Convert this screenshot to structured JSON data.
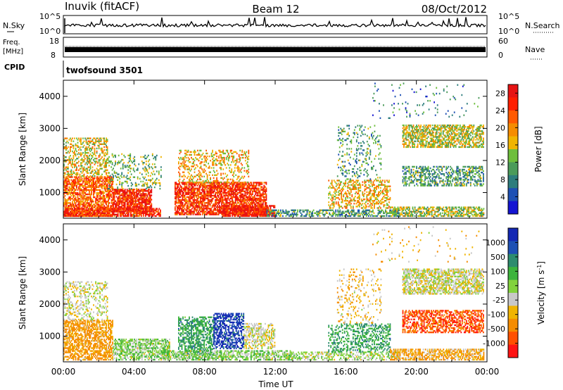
{
  "header": {
    "station": "Inuvik (fitACF)",
    "beam": "Beam 12",
    "date": "08/Oct/2012"
  },
  "strip_panels": {
    "nsky": {
      "left_label": "N.Sky",
      "right_label": "N.Search",
      "left_ticks": [
        "10^5",
        "10^0"
      ],
      "right_ticks": [
        "10^5",
        "10^0"
      ]
    },
    "freq": {
      "left_label_line1": "Freq.",
      "left_label_line2": "[MHz]",
      "right_label": "Nave",
      "left_ticks": [
        "18",
        "8"
      ],
      "right_ticks": [
        "60",
        "0"
      ]
    },
    "cpid": {
      "label": "CPID",
      "value": "twofsound 3501"
    }
  },
  "colors": {
    "power_scale": [
      "#1414d2",
      "#1e50b4",
      "#2d7d7d",
      "#4b9b5a",
      "#6ebe3c",
      "#f0b400",
      "#f58c00",
      "#ff5a00",
      "#ff1e00",
      "#e61414"
    ],
    "velocity_scale": [
      "#1428b4",
      "#1e50b4",
      "#2d8c6e",
      "#3cb43c",
      "#82d23c",
      "#c8c8c8",
      "#f0b400",
      "#f58c00",
      "#ff5000",
      "#ff1414"
    ]
  },
  "chart_data": [
    {
      "type": "heatmap",
      "name": "power",
      "ylabel": "Slant Range [km]",
      "xlabel": "",
      "x_ticks": [
        "00:00",
        "04:00",
        "08:00",
        "12:00",
        "16:00",
        "20:00",
        "00:00"
      ],
      "y_ticks": [
        "1000",
        "2000",
        "3000",
        "4000"
      ],
      "ylim": [
        200,
        4500
      ],
      "xlim_hours": [
        0,
        24
      ],
      "colorbar": {
        "label": "Power [dB]",
        "ticks": [
          "4",
          "8",
          "12",
          "16",
          "20",
          "24",
          "28"
        ],
        "range": [
          0,
          30
        ]
      },
      "regions": [
        {
          "t0": 0.0,
          "t1": 2.8,
          "r0": 250,
          "r1": 1500,
          "v": 22,
          "d": 0.7
        },
        {
          "t0": 0.0,
          "t1": 2.5,
          "r0": 1500,
          "r1": 2700,
          "v": 16,
          "d": 0.4
        },
        {
          "t0": 2.8,
          "t1": 5.0,
          "r0": 400,
          "r1": 1100,
          "v": 26,
          "d": 0.8
        },
        {
          "t0": 2.5,
          "t1": 5.5,
          "r0": 1100,
          "r1": 2200,
          "v": 12,
          "d": 0.2
        },
        {
          "t0": 0.0,
          "t1": 5.5,
          "r0": 250,
          "r1": 500,
          "v": 26,
          "d": 0.7
        },
        {
          "t0": 6.3,
          "t1": 11.5,
          "r0": 300,
          "r1": 1300,
          "v": 25,
          "d": 0.75
        },
        {
          "t0": 6.5,
          "t1": 10.5,
          "r0": 1300,
          "r1": 2300,
          "v": 18,
          "d": 0.3
        },
        {
          "t0": 9.0,
          "t1": 12.0,
          "r0": 250,
          "r1": 600,
          "v": 27,
          "d": 0.8
        },
        {
          "t0": 11.5,
          "t1": 19.0,
          "r0": 250,
          "r1": 450,
          "v": 10,
          "d": 0.5
        },
        {
          "t0": 15.0,
          "t1": 18.5,
          "r0": 500,
          "r1": 1400,
          "v": 18,
          "d": 0.4
        },
        {
          "t0": 15.5,
          "t1": 18.0,
          "r0": 1400,
          "r1": 3100,
          "v": 10,
          "d": 0.15
        },
        {
          "t0": 19.2,
          "t1": 23.8,
          "r0": 2400,
          "r1": 3100,
          "v": 15,
          "d": 0.6
        },
        {
          "t0": 19.2,
          "t1": 23.8,
          "r0": 1200,
          "r1": 1800,
          "v": 10,
          "d": 0.45
        },
        {
          "t0": 18.5,
          "t1": 23.8,
          "r0": 250,
          "r1": 550,
          "v": 14,
          "d": 0.6
        },
        {
          "t0": 17.5,
          "t1": 23.5,
          "r0": 3300,
          "r1": 4400,
          "v": 8,
          "d": 0.03
        }
      ]
    },
    {
      "type": "heatmap",
      "name": "velocity",
      "ylabel": "Slant Range [km]",
      "xlabel": "Time UT",
      "x_ticks": [
        "00:00",
        "04:00",
        "08:00",
        "12:00",
        "16:00",
        "20:00",
        "00:00"
      ],
      "y_ticks": [
        "1000",
        "2000",
        "3000",
        "4000"
      ],
      "ylim": [
        200,
        4500
      ],
      "xlim_hours": [
        0,
        24
      ],
      "colorbar": {
        "label": "Velocity [m s^-1]",
        "ticks": [
          "1000",
          "500",
          "100",
          "25",
          "-25",
          "-100",
          "-500",
          "-1000"
        ]
      },
      "regions": [
        {
          "t0": 0.0,
          "t1": 2.8,
          "r0": 250,
          "r1": 1500,
          "v": -150,
          "d": 0.6
        },
        {
          "t0": 0.0,
          "t1": 2.5,
          "r0": 1500,
          "r1": 2700,
          "v": 0,
          "d": 0.3
        },
        {
          "t0": 2.8,
          "t1": 6.0,
          "r0": 250,
          "r1": 900,
          "v": 60,
          "d": 0.6
        },
        {
          "t0": 6.5,
          "t1": 8.5,
          "r0": 400,
          "r1": 1600,
          "v": 300,
          "d": 0.55
        },
        {
          "t0": 8.5,
          "t1": 10.2,
          "r0": 600,
          "r1": 1700,
          "v": 900,
          "d": 0.55
        },
        {
          "t0": 10.2,
          "t1": 12.0,
          "r0": 600,
          "r1": 1400,
          "v": 0,
          "d": 0.5
        },
        {
          "t0": 5.5,
          "t1": 13.0,
          "r0": 250,
          "r1": 550,
          "v": 60,
          "d": 0.6
        },
        {
          "t0": 12.5,
          "t1": 19.0,
          "r0": 250,
          "r1": 500,
          "v": 40,
          "d": 0.45
        },
        {
          "t0": 15.0,
          "t1": 18.5,
          "r0": 500,
          "r1": 1400,
          "v": 300,
          "d": 0.35
        },
        {
          "t0": 15.5,
          "t1": 18.0,
          "r0": 1400,
          "r1": 3100,
          "v": -60,
          "d": 0.15
        },
        {
          "t0": 19.2,
          "t1": 23.8,
          "r0": 2300,
          "r1": 3100,
          "v": 0,
          "d": 0.65
        },
        {
          "t0": 19.2,
          "t1": 23.8,
          "r0": 1100,
          "r1": 1800,
          "v": -400,
          "d": 0.55
        },
        {
          "t0": 18.5,
          "t1": 23.8,
          "r0": 250,
          "r1": 600,
          "v": -100,
          "d": 0.6
        },
        {
          "t0": 17.5,
          "t1": 23.5,
          "r0": 3300,
          "r1": 4400,
          "v": -60,
          "d": 0.03
        }
      ]
    }
  ]
}
